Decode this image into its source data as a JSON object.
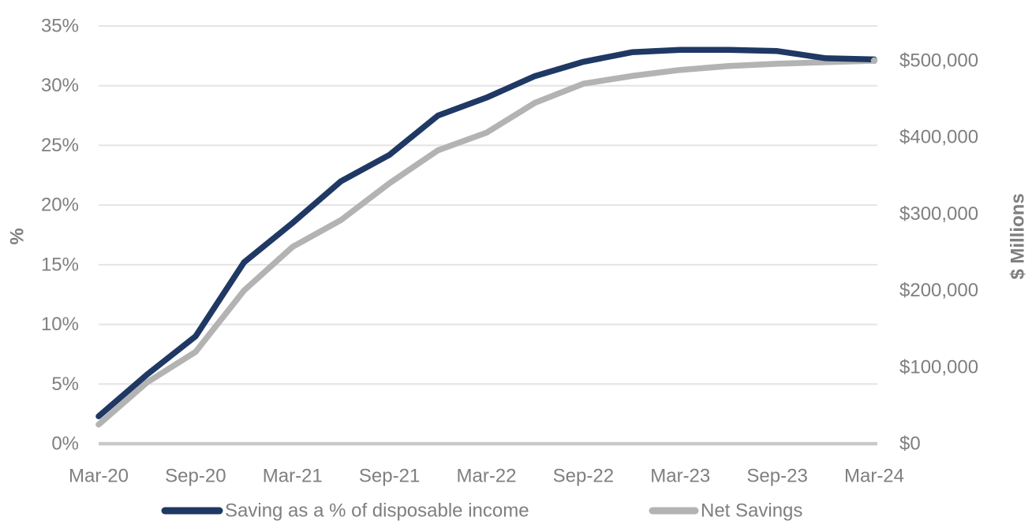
{
  "chart_data": {
    "type": "line",
    "title": "",
    "dual_axis": true,
    "categories": [
      "Mar-20",
      "Jun-20",
      "Sep-20",
      "Dec-20",
      "Mar-21",
      "Jun-21",
      "Sep-21",
      "Dec-21",
      "Mar-22",
      "Jun-22",
      "Sep-22",
      "Dec-22",
      "Mar-23",
      "Jun-23",
      "Sep-23",
      "Dec-23",
      "Mar-24"
    ],
    "x_tick_labels": [
      "Mar-20",
      "Sep-20",
      "Mar-21",
      "Sep-21",
      "Mar-22",
      "Sep-22",
      "Mar-23",
      "Sep-23",
      "Mar-24"
    ],
    "series": [
      {
        "name": "Saving as a % of disposable income",
        "axis": "left",
        "color": "#1F3864",
        "unit": "%",
        "values": [
          2.3,
          5.8,
          9.0,
          15.2,
          18.5,
          22.0,
          24.2,
          27.5,
          29.0,
          30.8,
          32.0,
          32.8,
          33.0,
          33.0,
          32.9,
          32.3,
          32.2
        ]
      },
      {
        "name": "Net Savings",
        "axis": "right",
        "color": "#B3B3B3",
        "unit": "$ Millions",
        "values": [
          25000,
          80000,
          120000,
          200000,
          257000,
          292000,
          340000,
          383000,
          406000,
          445000,
          470000,
          480000,
          488000,
          493000,
          496000,
          498000,
          500000
        ]
      }
    ],
    "left_axis": {
      "title": "%",
      "min": 0,
      "max": 35,
      "tick_step": 5,
      "tick_labels": [
        "0%",
        "5%",
        "10%",
        "15%",
        "20%",
        "25%",
        "30%",
        "35%"
      ]
    },
    "right_axis": {
      "title": "$ Millions",
      "min": 0,
      "max": 500000,
      "tick_step": 100000,
      "tick_labels": [
        "$0",
        "$100,000",
        "$200,000",
        "$300,000",
        "$400,000",
        "$500,000"
      ]
    },
    "grid": true,
    "legend_position": "bottom",
    "colors": {
      "grid": "#E4E4E4",
      "axis_line": "#C9C9C9",
      "text": "#7F7F7F",
      "background": "#FFFFFF"
    }
  }
}
